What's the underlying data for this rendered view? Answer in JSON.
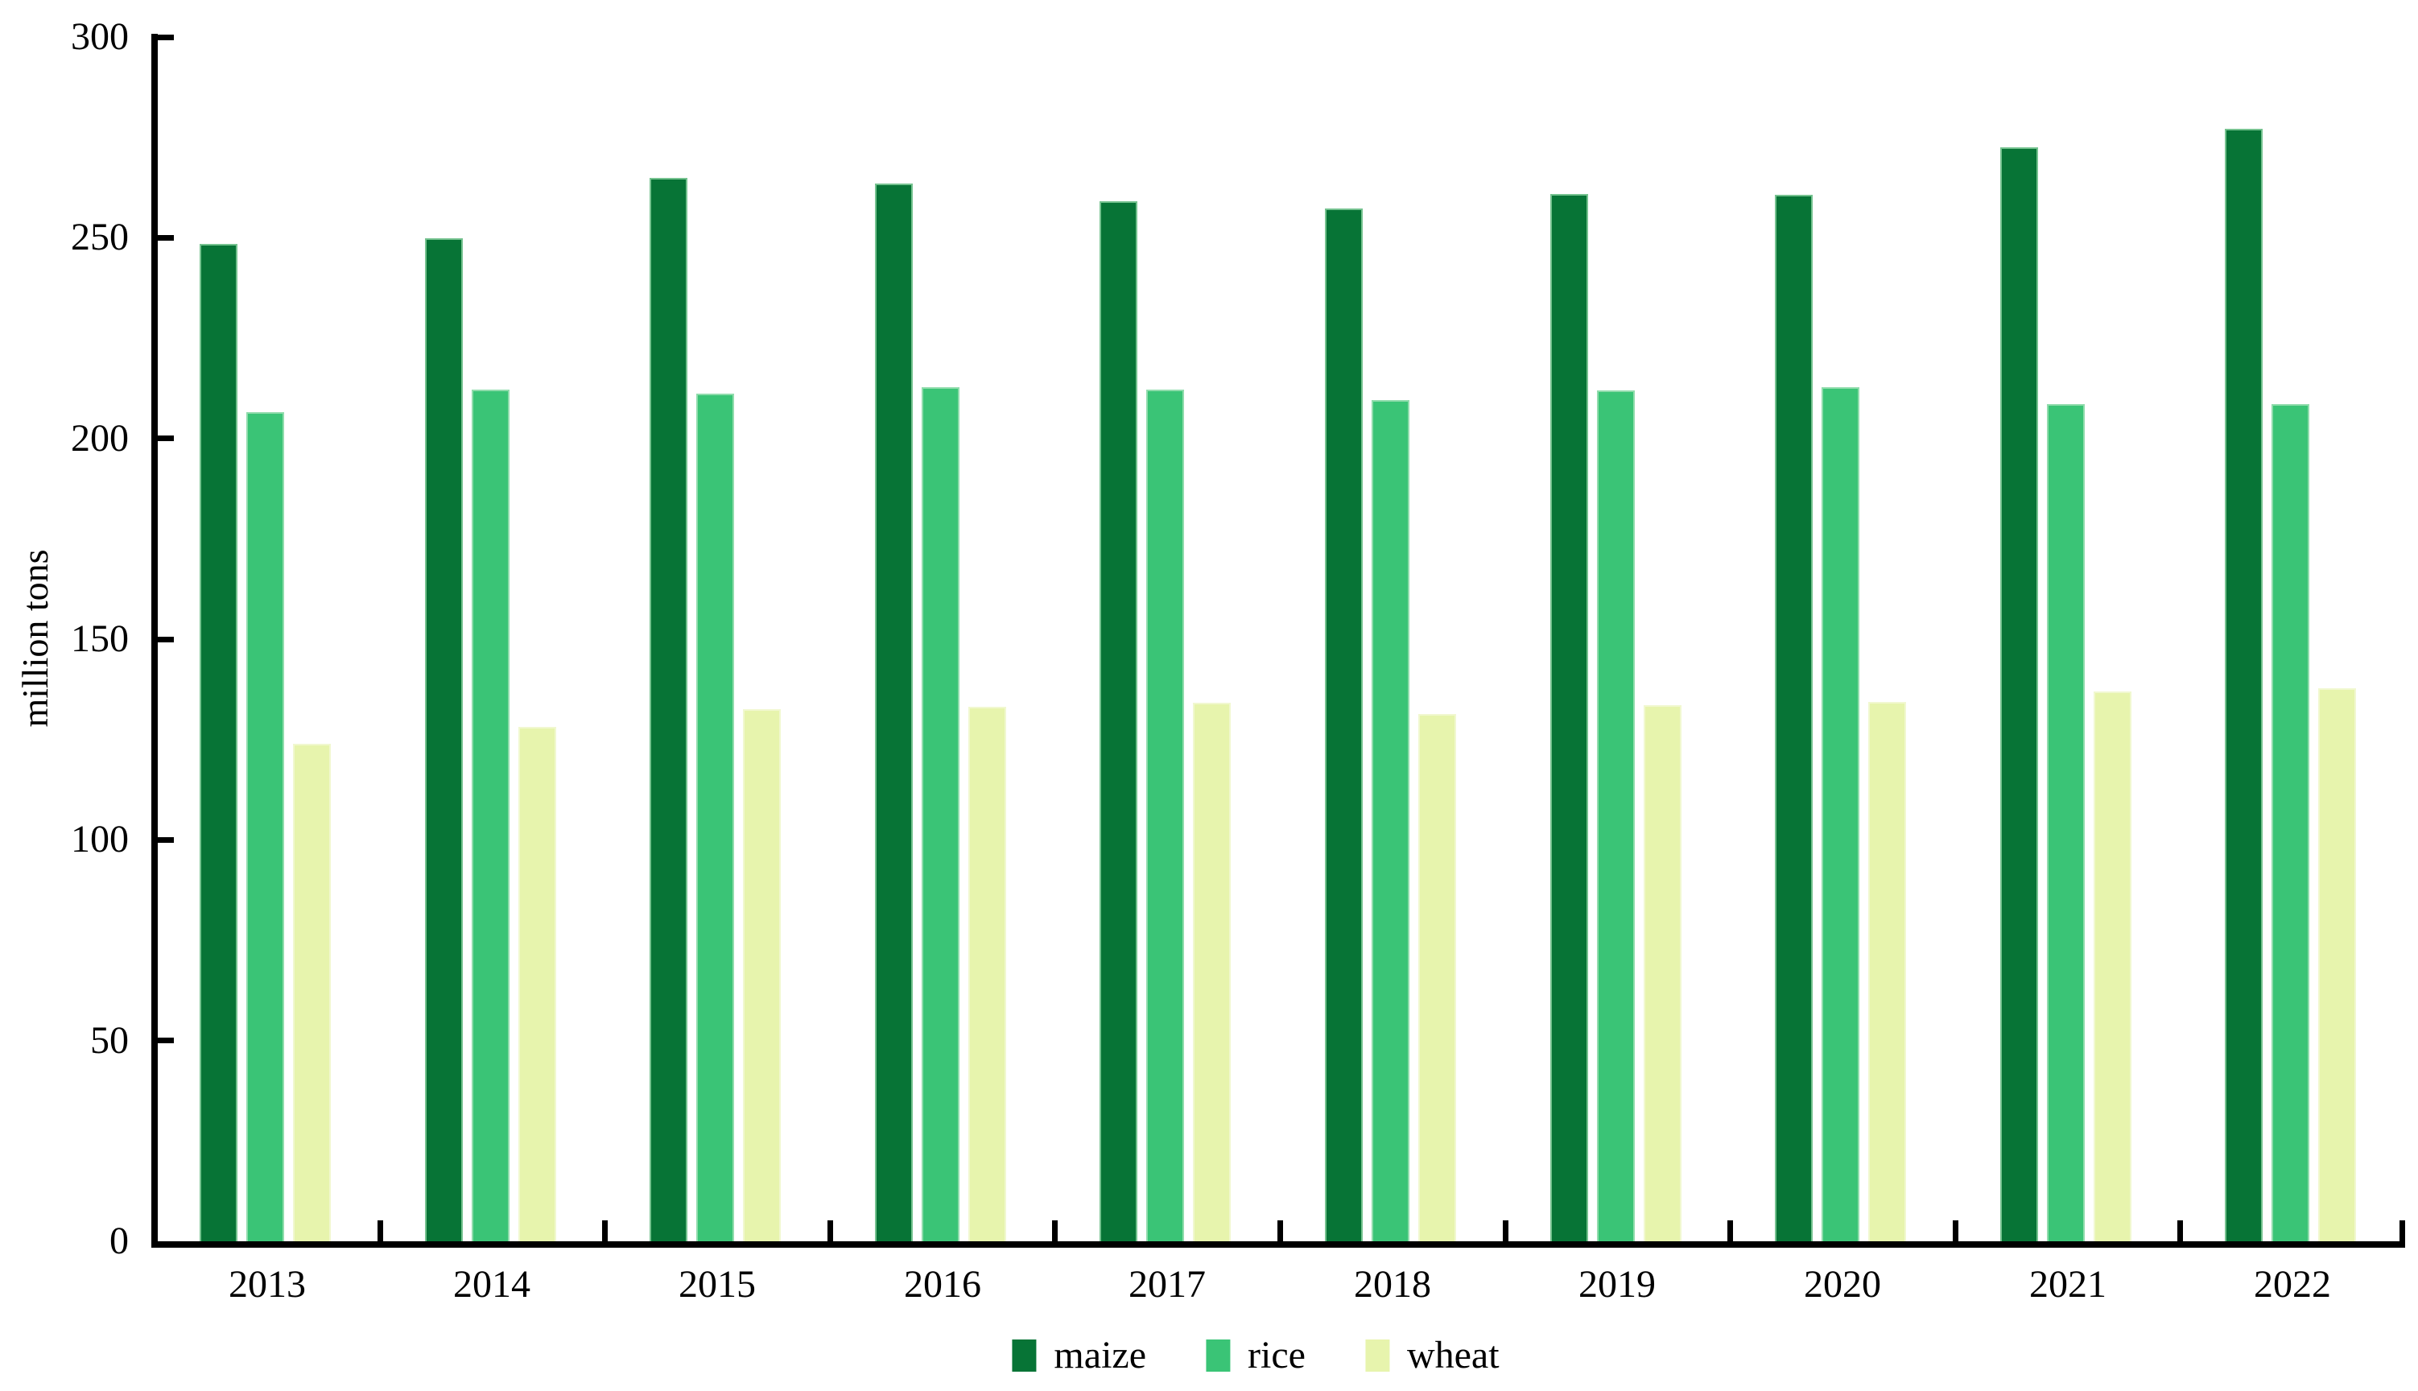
{
  "chart_data": {
    "type": "bar",
    "title": "",
    "xlabel": "",
    "ylabel": "million tons",
    "categories": [
      "2013",
      "2014",
      "2015",
      "2016",
      "2017",
      "2018",
      "2019",
      "2020",
      "2021",
      "2022"
    ],
    "series": [
      {
        "name": "maize",
        "color": "#077436",
        "edge_color": "#75c28f",
        "values": [
          248.5,
          249.8,
          265.0,
          263.6,
          259.1,
          257.2,
          260.8,
          260.7,
          272.6,
          277.2
        ]
      },
      {
        "name": "rice",
        "color": "#3ac476",
        "edge_color": "#90dcac",
        "values": [
          206.5,
          212.1,
          211.1,
          212.7,
          212.1,
          209.6,
          211.9,
          212.8,
          208.5,
          208.5
        ]
      },
      {
        "name": "wheat",
        "color": "#e7f4ad",
        "edge_color": "#f1f8d0",
        "values": [
          123.9,
          128.1,
          132.6,
          133.2,
          134.2,
          131.4,
          133.6,
          134.3,
          137.0,
          137.7
        ]
      }
    ],
    "ylim": [
      0,
      300
    ],
    "ytick_step": 50,
    "ytick_labels": [
      "0",
      "50",
      "100",
      "150",
      "200",
      "250",
      "300"
    ],
    "grid": false,
    "legend_position": "bottom-center",
    "axis_color": "#000000",
    "background": "#ffffff"
  }
}
